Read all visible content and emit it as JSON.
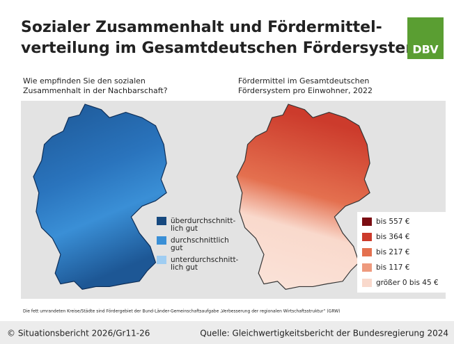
{
  "header": {
    "title_lines": [
      "Sozialer Zusammenhalt und Fördermittel-",
      "verteilung im Gesamtdeutschen Fördersystem"
    ],
    "logo": "DBV"
  },
  "left_map": {
    "title_lines": [
      "Wie empfinden Sie den sozialen",
      "Zusammenhalt in der Nachbarschaft?"
    ],
    "legend": [
      {
        "color": "#17497f",
        "lines": [
          "überdurchschnitt-",
          "lich gut"
        ]
      },
      {
        "color": "#3a8fd6",
        "lines": [
          "durchschnittlich",
          "gut"
        ]
      },
      {
        "color": "#9fcdf2",
        "lines": [
          "unterdurchschnitt-",
          "lich gut"
        ]
      }
    ]
  },
  "right_map": {
    "title_lines": [
      "Fördermittel im Gesamtdeutschen",
      "Fördersystem pro Einwohner, 2022"
    ],
    "legend": [
      {
        "color": "#7b0d12",
        "lines": [
          "bis 557 €"
        ]
      },
      {
        "color": "#cc3b2c",
        "lines": [
          "bis 364 €"
        ]
      },
      {
        "color": "#e4704f",
        "lines": [
          "bis 217 €"
        ]
      },
      {
        "color": "#ee9a7e",
        "lines": [
          "bis 117 €"
        ]
      },
      {
        "color": "#f9d9cc",
        "lines": [
          "größer 0 bis 45 €"
        ]
      }
    ]
  },
  "footnote": "Die fett umrandeten Kreise/Städte sind Fördergebiet der Bund-Länder-Gemeinschaftsaufgabe „Verbesserung der regionalen Wirtschaftsstruktur“ (GRW)",
  "footer": {
    "left": "© Situationsbericht 2026/Gr11-26",
    "right": "Quelle: Gleichwertigkeitsbericht der Bundesregierung 2024"
  }
}
